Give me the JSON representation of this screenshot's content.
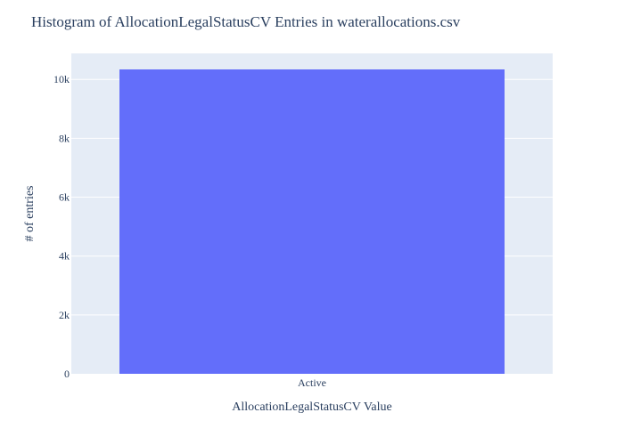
{
  "chart_data": {
    "type": "bar",
    "title": "Histogram of AllocationLegalStatusCV Entries in waterallocations.csv",
    "xlabel": "AllocationLegalStatusCV Value",
    "ylabel": "# of entries",
    "categories": [
      "Active"
    ],
    "values": [
      10340
    ],
    "ylim": [
      0,
      10884
    ],
    "yticks": [
      0,
      2000,
      4000,
      6000,
      8000,
      10000
    ],
    "ytick_labels": [
      "0",
      "2k",
      "4k",
      "6k",
      "8k",
      "10k"
    ],
    "grid": true,
    "legend": "none",
    "colors": {
      "bar": "#636efa",
      "plot_bg": "#e5ecf6",
      "grid": "#ffffff",
      "text": "#2a3f5f"
    }
  }
}
